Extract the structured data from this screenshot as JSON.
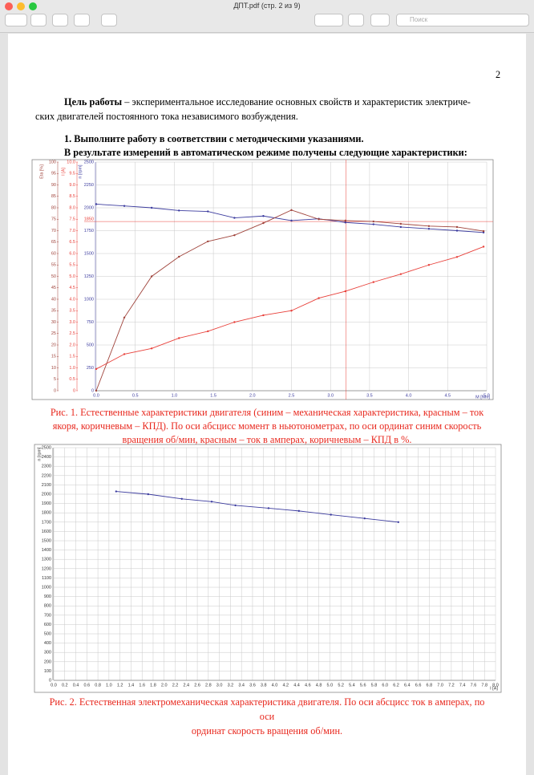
{
  "window": {
    "title": "ДПТ.pdf (стр. 2 из 9)",
    "search_placeholder": "Поиск"
  },
  "document": {
    "page_number": "2",
    "intro_bold": "Цель работы",
    "intro_line1": "– экспериментальное исследование основных свойств и  характеристик электриче-",
    "intro_line2": "ских двигателей постоянного тока независимого возбуждения.",
    "task_heading": "1. Выполните работу в соответствии с методическими указаниями.",
    "task_subheading": "В результате измерений в автоматическом режиме получены следующие характеристики:",
    "fig1_caption": [
      "Рис. 1. Естественные характеристики двигателя (синим – механическая характеристика, красным – ток",
      "якоря, коричневым – КПД). По оси абсцисс момент в ньютонометрах, по оси ординат синим скорость",
      "вращения об/мин, красным – ток в амперах, коричневым – КПД в %."
    ],
    "fig2_caption": [
      "Рис. 2. Естественная электромеханическая характеристика двигателя. По оси абсцисс ток в амперах, по",
      "оси",
      "ординат скорость вращения об/мин."
    ]
  },
  "chart_data": [
    {
      "type": "line",
      "grid": true,
      "colored_axes": true,
      "xlabel": "M [Nm]",
      "ylabel": "n [rpm]",
      "y2label": "I [A]",
      "y3label": "Eta [%]",
      "x": [
        0,
        0.36,
        0.71,
        1.06,
        1.43,
        1.77,
        2.14,
        2.5,
        2.85,
        3.19,
        3.55,
        3.9,
        4.26,
        4.62,
        4.96
      ],
      "series": [
        {
          "name": "n",
          "color": "#3b3b9e",
          "axis": "y",
          "values": [
            2040,
            2020,
            2000,
            1970,
            1960,
            1890,
            1910,
            1860,
            1880,
            1840,
            1820,
            1790,
            1770,
            1750,
            1730
          ]
        },
        {
          "name": "I",
          "color": "#e8403a",
          "axis": "y2",
          "values": [
            0.95,
            1.6,
            1.85,
            2.3,
            2.6,
            3.0,
            3.3,
            3.5,
            4.05,
            4.35,
            4.75,
            5.1,
            5.5,
            5.85,
            6.3
          ]
        },
        {
          "name": "Eta",
          "color": "#a0443c",
          "axis": "y3",
          "values": [
            0,
            32,
            50,
            58.6,
            65.3,
            68,
            73.3,
            79,
            75,
            74.4,
            74,
            73,
            72,
            71.6,
            69.8
          ]
        }
      ],
      "xlim": [
        0,
        5
      ],
      "xticks": [
        {
          "value": 0,
          "label": "0.0"
        },
        0.5,
        {
          "value": 1,
          "label": "1.0"
        },
        1.5,
        {
          "value": 2,
          "label": "2.0"
        },
        2.5,
        {
          "value": 3,
          "label": "3.0"
        },
        3.5,
        {
          "value": 4,
          "label": "4.0"
        },
        4.5,
        {
          "value": 5,
          "label": "5.0"
        }
      ],
      "ylim": [
        0,
        2500
      ],
      "yticks": [
        0,
        250,
        500,
        750,
        1000,
        1250,
        1500,
        1750,
        2000,
        2250,
        2500
      ],
      "y2lim": [
        0,
        10
      ],
      "y2ticks": [
        0,
        0.5,
        {
          "value": 1,
          "label": "1.0"
        },
        1.5,
        {
          "value": 2,
          "label": "2.0"
        },
        2.5,
        {
          "value": 3,
          "label": "3.0"
        },
        3.5,
        {
          "value": 4,
          "label": "4.0"
        },
        4.5,
        {
          "value": 5,
          "label": "5.0"
        },
        5.5,
        {
          "value": 6,
          "label": "6.0"
        },
        6.5,
        {
          "value": 7,
          "label": "7.0"
        },
        7.5,
        {
          "value": 8,
          "label": "8.0"
        },
        8.5,
        {
          "value": 9,
          "label": "9.0"
        },
        9.5,
        {
          "value": 10,
          "label": "10.0"
        }
      ],
      "y3lim": [
        0,
        100
      ],
      "y3ticks": [
        0,
        5,
        10,
        15,
        20,
        25,
        30,
        35,
        40,
        45,
        50,
        55,
        60,
        65,
        70,
        75,
        80,
        85,
        90,
        95,
        100
      ],
      "annotation_y": 1850,
      "annotation_x": 3.2,
      "annotation_color": "#e8403a"
    },
    {
      "type": "line",
      "grid": true,
      "colored_axes": false,
      "xlabel": "I [A]",
      "ylabel": "n [rpm]",
      "x": [
        1.13,
        1.71,
        2.32,
        2.86,
        3.29,
        3.89,
        4.44,
        5.02,
        5.63,
        6.24
      ],
      "series": [
        {
          "name": "n",
          "color": "#3b3b9e",
          "axis": "y",
          "values": [
            2030,
            2000,
            1950,
            1920,
            1880,
            1850,
            1820,
            1780,
            1740,
            1700
          ]
        }
      ],
      "xlim": [
        0,
        8
      ],
      "xticks": [
        {
          "value": 0,
          "label": "0.0"
        },
        0.2,
        0.4,
        0.6,
        0.8,
        {
          "value": 1,
          "label": "1.0"
        },
        1.2,
        1.4,
        1.6,
        1.8,
        {
          "value": 2,
          "label": "2.0"
        },
        2.2,
        2.4,
        2.6,
        2.8,
        {
          "value": 3,
          "label": "3.0"
        },
        3.2,
        3.4,
        3.6,
        3.8,
        {
          "value": 4,
          "label": "4.0"
        },
        4.2,
        4.4,
        4.6,
        4.8,
        {
          "value": 5,
          "label": "5.0"
        },
        5.2,
        5.4,
        5.6,
        5.8,
        {
          "value": 6,
          "label": "6.0"
        },
        6.2,
        6.4,
        6.6,
        6.8,
        {
          "value": 7,
          "label": "7.0"
        },
        7.2,
        7.4,
        7.6,
        7.8,
        {
          "value": 8,
          "label": "8.0"
        }
      ],
      "ylim": [
        0,
        2500
      ],
      "yticks": [
        0,
        100,
        200,
        300,
        400,
        500,
        600,
        700,
        800,
        900,
        1000,
        1100,
        1200,
        1300,
        1400,
        1500,
        1600,
        1700,
        1800,
        1900,
        2000,
        2100,
        2200,
        2300,
        2400,
        2500
      ]
    }
  ]
}
